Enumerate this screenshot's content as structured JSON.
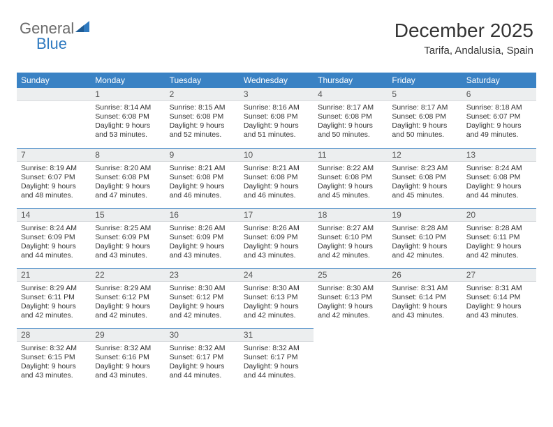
{
  "logo": {
    "text1": "General",
    "text2": "Blue"
  },
  "header": {
    "title": "December 2025",
    "location": "Tarifa, Andalusia, Spain"
  },
  "colors": {
    "header_bg": "#3a82c4",
    "header_text": "#ffffff",
    "daynum_bg": "#eceeef",
    "rule": "#3a82c4",
    "text": "#333333",
    "logo_gray": "#6b6b6b",
    "logo_blue": "#2f7ac0"
  },
  "weekdays": [
    "Sunday",
    "Monday",
    "Tuesday",
    "Wednesday",
    "Thursday",
    "Friday",
    "Saturday"
  ],
  "start_offset": 1,
  "days": [
    {
      "n": 1,
      "sunrise": "8:14 AM",
      "sunset": "6:08 PM",
      "daylight": "9 hours and 53 minutes."
    },
    {
      "n": 2,
      "sunrise": "8:15 AM",
      "sunset": "6:08 PM",
      "daylight": "9 hours and 52 minutes."
    },
    {
      "n": 3,
      "sunrise": "8:16 AM",
      "sunset": "6:08 PM",
      "daylight": "9 hours and 51 minutes."
    },
    {
      "n": 4,
      "sunrise": "8:17 AM",
      "sunset": "6:08 PM",
      "daylight": "9 hours and 50 minutes."
    },
    {
      "n": 5,
      "sunrise": "8:17 AM",
      "sunset": "6:08 PM",
      "daylight": "9 hours and 50 minutes."
    },
    {
      "n": 6,
      "sunrise": "8:18 AM",
      "sunset": "6:07 PM",
      "daylight": "9 hours and 49 minutes."
    },
    {
      "n": 7,
      "sunrise": "8:19 AM",
      "sunset": "6:07 PM",
      "daylight": "9 hours and 48 minutes."
    },
    {
      "n": 8,
      "sunrise": "8:20 AM",
      "sunset": "6:08 PM",
      "daylight": "9 hours and 47 minutes."
    },
    {
      "n": 9,
      "sunrise": "8:21 AM",
      "sunset": "6:08 PM",
      "daylight": "9 hours and 46 minutes."
    },
    {
      "n": 10,
      "sunrise": "8:21 AM",
      "sunset": "6:08 PM",
      "daylight": "9 hours and 46 minutes."
    },
    {
      "n": 11,
      "sunrise": "8:22 AM",
      "sunset": "6:08 PM",
      "daylight": "9 hours and 45 minutes."
    },
    {
      "n": 12,
      "sunrise": "8:23 AM",
      "sunset": "6:08 PM",
      "daylight": "9 hours and 45 minutes."
    },
    {
      "n": 13,
      "sunrise": "8:24 AM",
      "sunset": "6:08 PM",
      "daylight": "9 hours and 44 minutes."
    },
    {
      "n": 14,
      "sunrise": "8:24 AM",
      "sunset": "6:09 PM",
      "daylight": "9 hours and 44 minutes."
    },
    {
      "n": 15,
      "sunrise": "8:25 AM",
      "sunset": "6:09 PM",
      "daylight": "9 hours and 43 minutes."
    },
    {
      "n": 16,
      "sunrise": "8:26 AM",
      "sunset": "6:09 PM",
      "daylight": "9 hours and 43 minutes."
    },
    {
      "n": 17,
      "sunrise": "8:26 AM",
      "sunset": "6:09 PM",
      "daylight": "9 hours and 43 minutes."
    },
    {
      "n": 18,
      "sunrise": "8:27 AM",
      "sunset": "6:10 PM",
      "daylight": "9 hours and 42 minutes."
    },
    {
      "n": 19,
      "sunrise": "8:28 AM",
      "sunset": "6:10 PM",
      "daylight": "9 hours and 42 minutes."
    },
    {
      "n": 20,
      "sunrise": "8:28 AM",
      "sunset": "6:11 PM",
      "daylight": "9 hours and 42 minutes."
    },
    {
      "n": 21,
      "sunrise": "8:29 AM",
      "sunset": "6:11 PM",
      "daylight": "9 hours and 42 minutes."
    },
    {
      "n": 22,
      "sunrise": "8:29 AM",
      "sunset": "6:12 PM",
      "daylight": "9 hours and 42 minutes."
    },
    {
      "n": 23,
      "sunrise": "8:30 AM",
      "sunset": "6:12 PM",
      "daylight": "9 hours and 42 minutes."
    },
    {
      "n": 24,
      "sunrise": "8:30 AM",
      "sunset": "6:13 PM",
      "daylight": "9 hours and 42 minutes."
    },
    {
      "n": 25,
      "sunrise": "8:30 AM",
      "sunset": "6:13 PM",
      "daylight": "9 hours and 42 minutes."
    },
    {
      "n": 26,
      "sunrise": "8:31 AM",
      "sunset": "6:14 PM",
      "daylight": "9 hours and 43 minutes."
    },
    {
      "n": 27,
      "sunrise": "8:31 AM",
      "sunset": "6:14 PM",
      "daylight": "9 hours and 43 minutes."
    },
    {
      "n": 28,
      "sunrise": "8:32 AM",
      "sunset": "6:15 PM",
      "daylight": "9 hours and 43 minutes."
    },
    {
      "n": 29,
      "sunrise": "8:32 AM",
      "sunset": "6:16 PM",
      "daylight": "9 hours and 43 minutes."
    },
    {
      "n": 30,
      "sunrise": "8:32 AM",
      "sunset": "6:17 PM",
      "daylight": "9 hours and 44 minutes."
    },
    {
      "n": 31,
      "sunrise": "8:32 AM",
      "sunset": "6:17 PM",
      "daylight": "9 hours and 44 minutes."
    }
  ],
  "labels": {
    "sunrise": "Sunrise:",
    "sunset": "Sunset:",
    "daylight": "Daylight:"
  }
}
